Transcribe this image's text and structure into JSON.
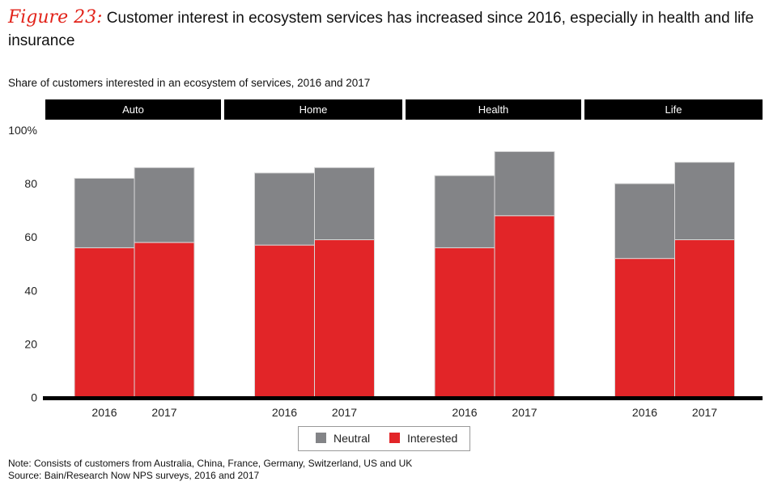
{
  "title": {
    "figure_label": "Figure 23:",
    "text": "Customer interest in ecosystem services has increased since 2016, especially in health and life insurance"
  },
  "subtitle": "Share of customers interested in an ecosystem of services, 2016 and 2017",
  "notes": {
    "note": "Note: Consists of customers from Australia, China, France, Germany, Switzerland, US and UK",
    "source": "Source: Bain/Research Now NPS surveys, 2016 and 2017"
  },
  "chart_data": {
    "type": "bar",
    "stacked": true,
    "panels": [
      "Auto",
      "Home",
      "Health",
      "Life"
    ],
    "categories": [
      "2016",
      "2017"
    ],
    "series": [
      {
        "name": "Interested",
        "color": "#e22528",
        "values": [
          [
            56,
            58
          ],
          [
            57,
            59
          ],
          [
            56,
            68
          ],
          [
            52,
            59
          ]
        ]
      },
      {
        "name": "Neutral",
        "color": "#838487",
        "values": [
          [
            26,
            28
          ],
          [
            27,
            27
          ],
          [
            27,
            24
          ],
          [
            28,
            29
          ]
        ]
      }
    ],
    "ylim": [
      0,
      100
    ],
    "yticks": [
      0,
      20,
      40,
      60,
      80,
      100
    ],
    "ytick_labels": [
      "0",
      "20",
      "40",
      "60",
      "80",
      "100%"
    ],
    "legend_order": [
      "Neutral",
      "Interested"
    ],
    "legend_position": "bottom-center",
    "grid": false
  }
}
